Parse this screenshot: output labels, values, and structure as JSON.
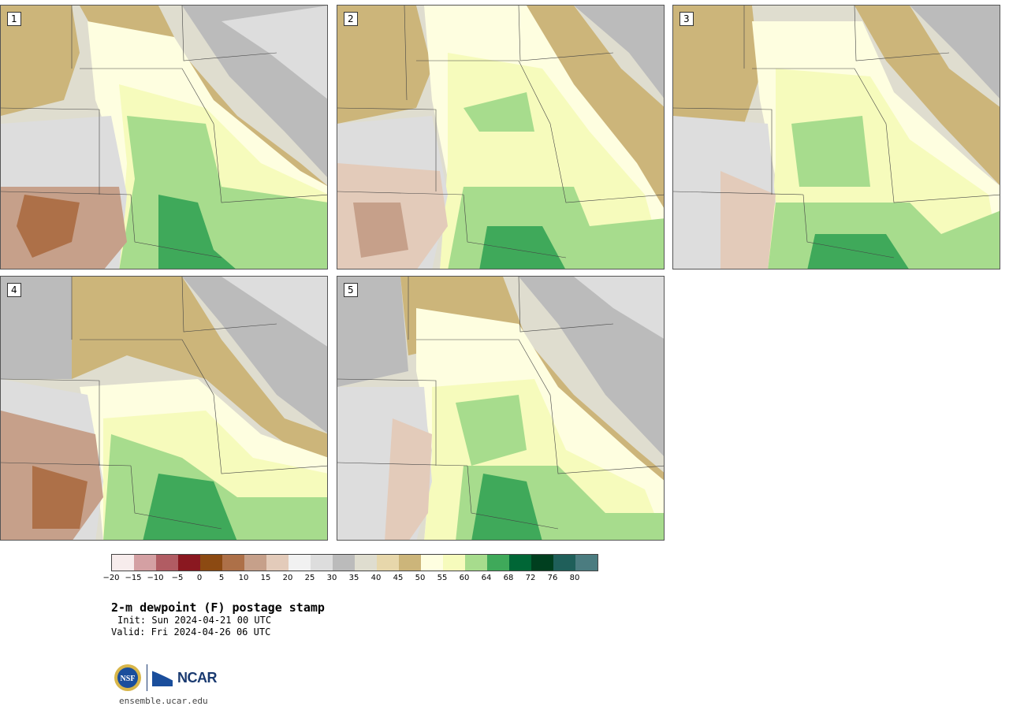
{
  "panels": [
    {
      "label": "1"
    },
    {
      "label": "2"
    },
    {
      "label": "3"
    },
    {
      "label": "4"
    },
    {
      "label": "5"
    }
  ],
  "colorbar": {
    "colors": [
      "#f7ecec",
      "#d4a0a3",
      "#b15c63",
      "#8a1820",
      "#8c4a12",
      "#ad7048",
      "#c6a08a",
      "#e3cbba",
      "#f1f1f1",
      "#dddddd",
      "#bbbbbb",
      "#dfddcf",
      "#e7d7ab",
      "#ccb57a",
      "#fefee0",
      "#f6fbbc",
      "#a7dc8d",
      "#3fa95a",
      "#006636",
      "#003f1f",
      "#1f5f5a",
      "#4b7c80"
    ],
    "ticks": [
      "−20",
      "−15",
      "−10",
      "−5",
      "0",
      "5",
      "10",
      "15",
      "20",
      "25",
      "30",
      "35",
      "40",
      "45",
      "50",
      "55",
      "60",
      "64",
      "68",
      "72",
      "76",
      "80"
    ]
  },
  "title": "2-m dewpoint (F) postage stamp",
  "init": "Init: Sun 2024-04-21 00 UTC",
  "valid": "Valid: Fri 2024-04-26 06 UTC",
  "logos": {
    "nsf": "NSF",
    "ncar": "NCAR"
  },
  "website": "ensemble.ucar.edu"
}
